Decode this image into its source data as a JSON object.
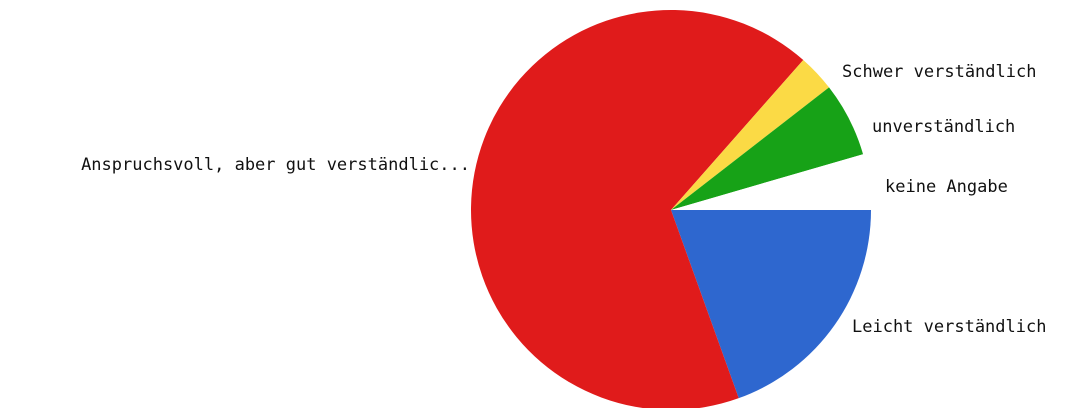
{
  "chart_data": {
    "type": "pie",
    "title": "",
    "slices": [
      {
        "label": "Leicht verständlich",
        "value": 19.5,
        "color": "#2e67cf"
      },
      {
        "label": "Anspruchsvoll, aber gut verständlic...",
        "value": 67.0,
        "color": "#e01b1b"
      },
      {
        "label": "Schwer verständlich",
        "value": 3.0,
        "color": "#fbda45"
      },
      {
        "label": "unverständlich",
        "value": 6.0,
        "color": "#17a217"
      },
      {
        "label": "keine Angabe",
        "value": 4.5,
        "color": "#ffffff"
      }
    ],
    "start": "3 o'clock",
    "direction": "clockwise",
    "legend": "none"
  }
}
